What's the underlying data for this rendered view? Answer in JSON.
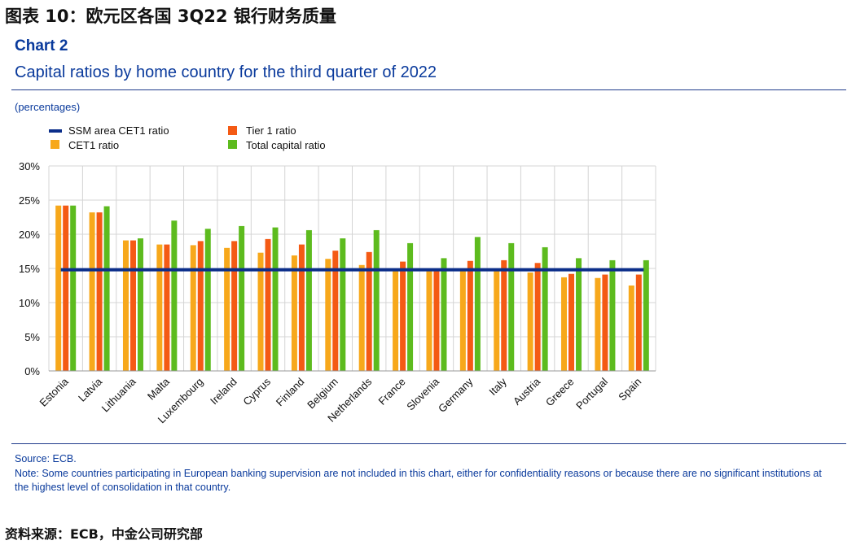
{
  "header": {
    "figure_title": "图表 10：欧元区各国 3Q22 银行财务质量",
    "chart_label": "Chart 2",
    "subtitle": "Capital ratios by home country for the third quarter of 2022",
    "units": "(percentages)"
  },
  "legend": {
    "ssm_line": "SSM area CET1 ratio",
    "tier1": "Tier 1 ratio",
    "cet1": "CET1 ratio",
    "total": "Total capital ratio"
  },
  "colors": {
    "cet1": "#f7a81b",
    "tier1": "#f45a14",
    "total": "#5dbb1e",
    "ssm_line": "#0b2e8a",
    "text_blue": "#0a3a9c"
  },
  "chart_data": {
    "type": "bar",
    "categories": [
      "Estonia",
      "Latvia",
      "Lithuania",
      "Malta",
      "Luxembourg",
      "Ireland",
      "Cyprus",
      "Finland",
      "Belgium",
      "Netherlands",
      "France",
      "Slovenia",
      "Germany",
      "Italy",
      "Austria",
      "Greece",
      "Portugal",
      "Spain"
    ],
    "series": [
      {
        "name": "CET1 ratio",
        "values": [
          24.2,
          23.2,
          19.1,
          18.5,
          18.4,
          18.0,
          17.3,
          16.9,
          16.4,
          15.5,
          14.6,
          14.6,
          14.8,
          14.8,
          14.4,
          13.7,
          13.6,
          12.5
        ]
      },
      {
        "name": "Tier 1 ratio",
        "values": [
          24.2,
          23.2,
          19.1,
          18.5,
          19.0,
          19.0,
          19.3,
          18.5,
          17.6,
          17.4,
          16.0,
          14.7,
          16.1,
          16.2,
          15.8,
          14.2,
          14.1,
          14.1
        ]
      },
      {
        "name": "Total capital ratio",
        "values": [
          24.2,
          24.1,
          19.4,
          22.0,
          20.8,
          21.2,
          21.0,
          20.6,
          19.4,
          20.6,
          18.7,
          16.5,
          19.6,
          18.7,
          18.1,
          16.5,
          16.2,
          16.2
        ]
      }
    ],
    "reference_line": {
      "name": "SSM area CET1 ratio",
      "value": 14.8
    },
    "ylim": [
      0,
      30
    ],
    "yticks": [
      "0%",
      "5%",
      "10%",
      "15%",
      "20%",
      "25%",
      "30%"
    ],
    "grid": true,
    "legend_position": "top-left"
  },
  "footer": {
    "source": "Source: ECB.",
    "note": "Note: Some countries participating in European banking supervision are not included in this chart, either for confidentiality reasons or because there are no significant institutions at the highest level of consolidation in that country.",
    "source_cn": "资料来源：ECB，中金公司研究部"
  }
}
